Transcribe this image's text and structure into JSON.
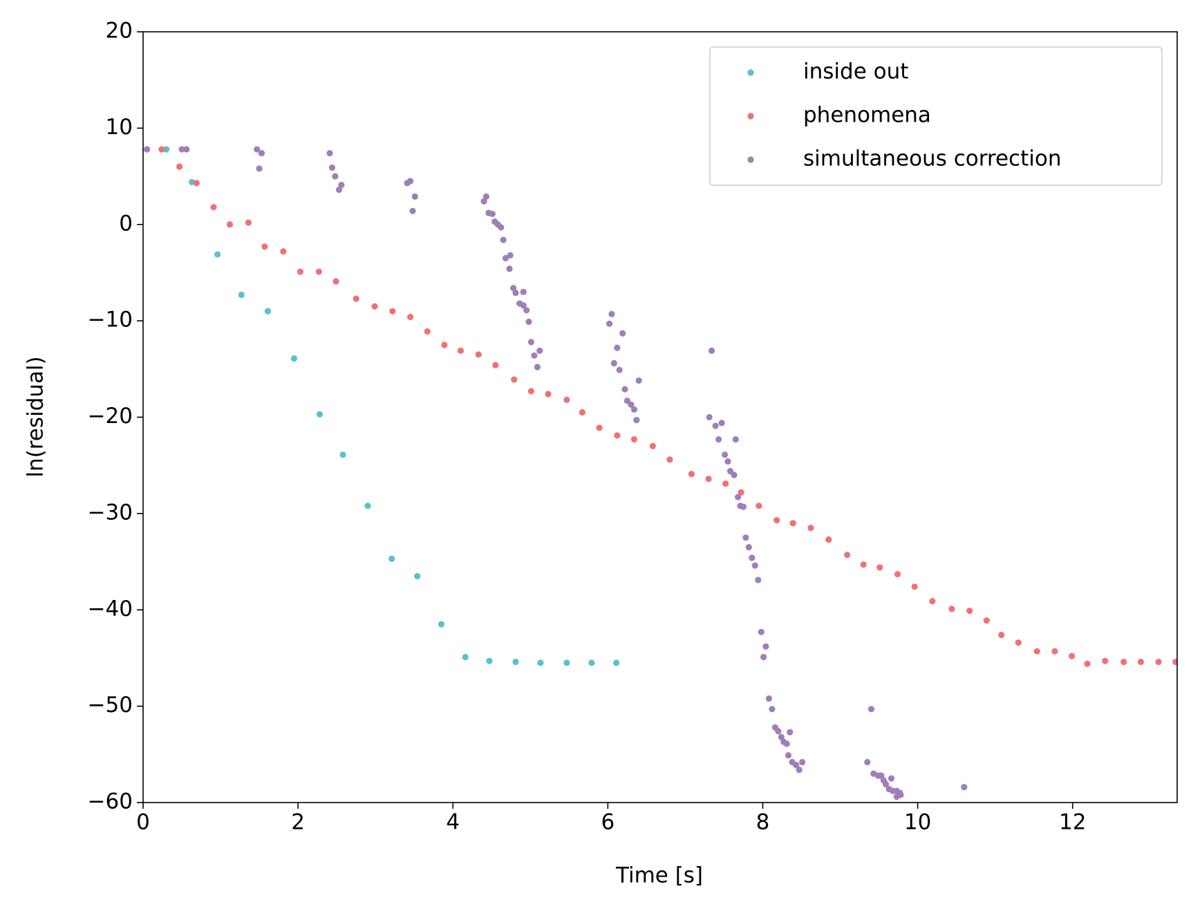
{
  "chart_data": {
    "type": "scatter",
    "xlabel": "Time [s]",
    "ylabel": "ln(residual)",
    "xlim": [
      0,
      13.35
    ],
    "ylim": [
      -60,
      20
    ],
    "xticks": [
      0,
      2,
      4,
      6,
      8,
      10,
      12
    ],
    "yticks": [
      {
        "value": -60,
        "label": "−60"
      },
      {
        "value": -50,
        "label": "−50"
      },
      {
        "value": -40,
        "label": "−40"
      },
      {
        "value": -30,
        "label": "−30"
      },
      {
        "value": -20,
        "label": "−20"
      },
      {
        "value": -10,
        "label": "−10"
      },
      0,
      10,
      20
    ],
    "legend": "upper right",
    "series": [
      {
        "name": "inside out",
        "color": "#5bc0cc",
        "x": [
          0.05,
          0.3,
          0.63,
          0.96,
          1.27,
          1.61,
          1.95,
          2.28,
          2.58,
          2.9,
          3.21,
          3.54,
          3.85,
          4.16,
          4.47,
          4.81,
          5.13,
          5.47,
          5.79,
          6.11
        ],
        "values": [
          7.8,
          7.8,
          4.4,
          -3.1,
          -7.3,
          -9.0,
          -13.9,
          -19.7,
          -23.9,
          -29.2,
          -34.7,
          -36.5,
          -41.5,
          -44.9,
          -45.3,
          -45.4,
          -45.5,
          -45.5,
          -45.5,
          -45.5
        ]
      },
      {
        "name": "phenomena",
        "color": "#ef7177",
        "x": [
          0.05,
          0.24,
          0.47,
          0.69,
          0.91,
          1.12,
          1.36,
          1.57,
          1.81,
          2.03,
          2.27,
          2.49,
          2.75,
          2.99,
          3.22,
          3.45,
          3.67,
          3.89,
          4.1,
          4.33,
          4.55,
          4.79,
          5.01,
          5.23,
          5.47,
          5.67,
          5.89,
          6.12,
          6.34,
          6.58,
          6.8,
          7.08,
          7.3,
          7.52,
          7.72,
          7.95,
          8.18,
          8.39,
          8.62,
          8.85,
          9.09,
          9.3,
          9.51,
          9.74,
          9.96,
          10.19,
          10.44,
          10.67,
          10.89,
          11.08,
          11.3,
          11.54,
          11.77,
          11.99,
          12.19,
          12.42,
          12.66,
          12.88,
          13.11,
          13.33
        ],
        "values": [
          7.8,
          7.8,
          6.0,
          4.3,
          1.8,
          0.0,
          0.2,
          -2.3,
          -2.8,
          -4.9,
          -4.9,
          -5.9,
          -7.7,
          -8.5,
          -9.0,
          -9.6,
          -11.1,
          -12.5,
          -13.1,
          -13.5,
          -14.6,
          -16.1,
          -17.3,
          -17.6,
          -18.2,
          -19.5,
          -21.1,
          -21.9,
          -22.3,
          -23.0,
          -24.4,
          -25.9,
          -26.4,
          -26.9,
          -27.8,
          -29.2,
          -30.7,
          -31.0,
          -31.5,
          -32.7,
          -34.3,
          -35.3,
          -35.6,
          -36.3,
          -37.6,
          -39.1,
          -39.9,
          -40.1,
          -41.1,
          -42.6,
          -43.4,
          -44.3,
          -44.3,
          -44.8,
          -45.6,
          -45.3,
          -45.4,
          -45.4,
          -45.4,
          -45.4
        ]
      },
      {
        "name": "simultaneous correction",
        "color": "#a07eb9",
        "x": [
          0.05,
          0.5,
          0.56,
          1.47,
          1.53,
          1.5,
          2.41,
          2.44,
          2.48,
          2.53,
          2.56,
          3.41,
          3.45,
          3.51,
          3.48,
          4.43,
          4.4,
          4.46,
          4.51,
          4.54,
          4.58,
          4.62,
          4.65,
          4.68,
          4.74,
          4.73,
          4.78,
          4.81,
          4.91,
          4.86,
          4.91,
          4.95,
          4.98,
          5.01,
          5.05,
          5.12,
          5.09,
          6.05,
          6.02,
          6.19,
          6.12,
          6.08,
          6.15,
          6.4,
          6.22,
          6.25,
          6.3,
          6.34,
          6.37,
          7.34,
          7.31,
          7.39,
          7.47,
          7.43,
          7.65,
          7.51,
          7.55,
          7.58,
          7.63,
          7.68,
          7.71,
          7.75,
          7.78,
          7.82,
          7.86,
          7.9,
          7.94,
          7.98,
          8.04,
          8.01,
          8.08,
          8.12,
          8.16,
          8.2,
          8.24,
          8.27,
          8.31,
          8.35,
          8.33,
          8.38,
          8.43,
          8.51,
          8.47,
          9.4,
          9.35,
          9.43,
          9.49,
          9.53,
          9.56,
          9.59,
          9.63,
          9.66,
          9.68,
          9.73,
          9.78,
          9.73,
          9.77,
          10.6
        ],
        "values": [
          7.8,
          7.8,
          7.8,
          7.8,
          7.4,
          5.8,
          7.4,
          5.9,
          5.0,
          3.6,
          4.1,
          4.3,
          4.5,
          2.9,
          1.4,
          2.9,
          2.4,
          1.2,
          1.1,
          0.3,
          0.0,
          -0.3,
          -1.6,
          -3.5,
          -3.2,
          -4.6,
          -6.6,
          -7.1,
          -7.0,
          -8.2,
          -8.4,
          -8.9,
          -10.1,
          -12.2,
          -13.6,
          -13.1,
          -14.8,
          -9.3,
          -10.3,
          -11.3,
          -12.8,
          -14.4,
          -15.1,
          -16.2,
          -17.1,
          -18.3,
          -18.7,
          -19.2,
          -20.3,
          -13.1,
          -20.0,
          -20.9,
          -20.6,
          -22.3,
          -22.3,
          -23.9,
          -24.6,
          -25.6,
          -26.0,
          -28.3,
          -29.2,
          -29.3,
          -32.5,
          -33.5,
          -34.6,
          -35.4,
          -36.9,
          -42.3,
          -43.8,
          -44.9,
          -49.2,
          -50.3,
          -52.2,
          -52.6,
          -53.2,
          -53.7,
          -53.9,
          -52.7,
          -55.1,
          -55.8,
          -56.1,
          -55.8,
          -56.6,
          -50.3,
          -55.8,
          -57.0,
          -57.2,
          -57.2,
          -57.7,
          -58.1,
          -58.6,
          -57.5,
          -58.8,
          -58.8,
          -59.2,
          -59.4,
          -59.0,
          -58.4
        ]
      }
    ]
  }
}
